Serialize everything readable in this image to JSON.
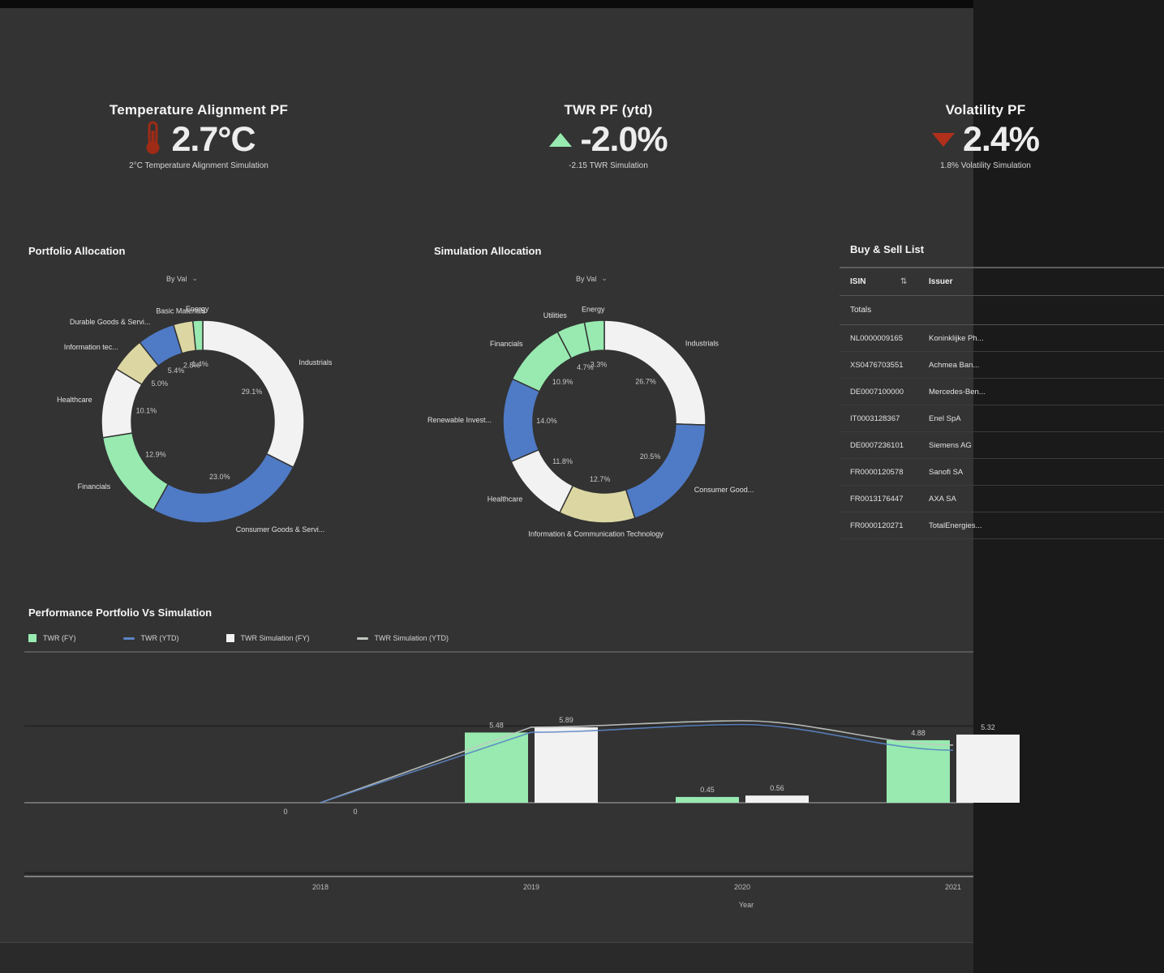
{
  "kpis": [
    {
      "title": "Temperature Alignment PF",
      "icon": "thermometer",
      "value": "2.7°C",
      "subtitle": "2°C Temperature Alignment Simulation"
    },
    {
      "title": "TWR PF (ytd)",
      "icon": "triangle-up",
      "value": "-2.0%",
      "subtitle": "-2.15 TWR Simulation"
    },
    {
      "title": "Volatility PF",
      "icon": "triangle-down",
      "value": "2.4%",
      "subtitle": "1.8% Volatility Simulation"
    }
  ],
  "sections": {
    "portfolio_allocation_title": "Portfolio Allocation",
    "simulation_allocation_title": "Simulation Allocation",
    "performance_title": "Performance Portfolio Vs Simulation",
    "donut_dropdown_label": "By Val",
    "donut_dropdown_caret": "⌄"
  },
  "buy_sell_list": {
    "title": "Buy & Sell List",
    "columns": [
      "ISIN",
      "Issuer"
    ],
    "sort_icon": "⇅",
    "totals_label": "Totals",
    "rows": [
      {
        "isin": "NL0000009165",
        "issuer": "Koninklijke Ph..."
      },
      {
        "isin": "XS0476703551",
        "issuer": "Achmea Ban..."
      },
      {
        "isin": "DE0007100000",
        "issuer": "Mercedes-Ben..."
      },
      {
        "isin": "IT0003128367",
        "issuer": "Enel SpA"
      },
      {
        "isin": "DE0007236101",
        "issuer": "Siemens AG"
      },
      {
        "isin": "FR0000120578",
        "issuer": "Sanofi SA"
      },
      {
        "isin": "FR0013176447",
        "issuer": "AXA SA"
      },
      {
        "isin": "FR0000120271",
        "issuer": "TotalEnergies..."
      }
    ]
  },
  "colors": {
    "background": "#333333",
    "green": "#98eab0",
    "blue": "#4f7ac5",
    "tan": "#dcd7a2",
    "white_slice": "#f2f2f2",
    "red": "#9e2b16",
    "line_blue": "#5b84c4",
    "line_grey": "#c2c8c2"
  },
  "chart_data": [
    {
      "type": "pie",
      "subtype": "donut",
      "title": "Portfolio Allocation",
      "legend_position": "none",
      "slices": [
        {
          "label": "Industrials",
          "value": 29.1,
          "color": "#f2f2f2"
        },
        {
          "label": "Consumer Goods & Servi...",
          "value": 23.0,
          "color": "#4f7ac5"
        },
        {
          "label": "Financials",
          "value": 12.9,
          "color": "#98eab0"
        },
        {
          "label": "Healthcare",
          "value": 10.1,
          "color": "#f2f2f2"
        },
        {
          "label": "Information tec...",
          "value": 5.0,
          "color": "#dcd7a2"
        },
        {
          "label": "Durable Goods & Servi...",
          "value": 5.4,
          "color": "#4f7ac5"
        },
        {
          "label": "Basic Materials",
          "value": 2.8,
          "color": "#dcd7a2"
        },
        {
          "label": "Energy",
          "value": 1.4,
          "color": "#98eab0"
        }
      ]
    },
    {
      "type": "pie",
      "subtype": "donut",
      "title": "Simulation Allocation",
      "legend_position": "none",
      "slices": [
        {
          "label": "Industrials",
          "value": 26.7,
          "color": "#f2f2f2"
        },
        {
          "label": "Consumer Good...",
          "value": 20.5,
          "color": "#4f7ac5"
        },
        {
          "label": "Information & Communication Technology",
          "value": 12.7,
          "color": "#dcd7a2"
        },
        {
          "label": "Healthcare",
          "value": 11.8,
          "color": "#f2f2f2"
        },
        {
          "label": "Renewable Invest...",
          "value": 14.0,
          "color": "#4f7ac5"
        },
        {
          "label": "Financials",
          "value": 10.9,
          "color": "#98eab0"
        },
        {
          "label": "Utilities",
          "value": 4.7,
          "color": "#98eab0"
        },
        {
          "label": "Energy",
          "value": 3.3,
          "color": "#98eab0"
        }
      ]
    },
    {
      "type": "bar",
      "subtype": "bar+line combo",
      "title": "Performance Portfolio Vs Simulation",
      "xlabel": "Year",
      "ylabel": "",
      "categories": [
        "2018",
        "2019",
        "2020",
        "2021"
      ],
      "ylim": [
        -6,
        7.5
      ],
      "gridline_values": [
        6,
        0,
        -6
      ],
      "series": [
        {
          "name": "TWR (FY)",
          "type": "bar",
          "color": "#98eab0",
          "values": [
            0,
            5.48,
            0.45,
            4.88
          ]
        },
        {
          "name": "TWR Simulation (FY)",
          "type": "bar",
          "color": "#f2f2f2",
          "values": [
            0,
            5.89,
            0.56,
            5.32
          ]
        },
        {
          "name": "TWR (YTD)",
          "type": "line",
          "color": "#5b84c4",
          "values": [
            0,
            5.5,
            6.1,
            4.1
          ]
        },
        {
          "name": "TWR Simulation (YTD)",
          "type": "line",
          "color": "#c2c8c2",
          "values": [
            0,
            5.9,
            6.4,
            4.5
          ]
        }
      ],
      "legend": [
        {
          "label": "TWR (FY)",
          "swatch": "square",
          "color": "#98eab0"
        },
        {
          "label": "TWR (YTD)",
          "swatch": "line",
          "color": "#5b84c4"
        },
        {
          "label": "TWR Simulation (FY)",
          "swatch": "square",
          "color": "#f2f2f2"
        },
        {
          "label": "TWR Simulation (YTD)",
          "swatch": "line",
          "color": "#c2c8c2"
        }
      ],
      "legend_position": "top-left"
    }
  ]
}
